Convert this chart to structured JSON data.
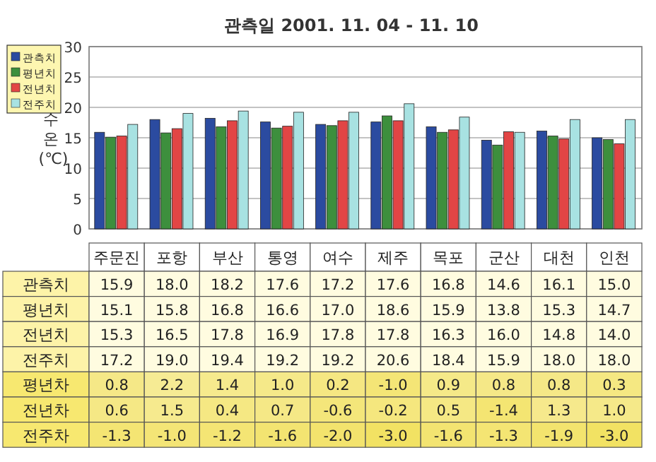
{
  "chart_data": [
    {
      "type": "bar",
      "title": "관측일 2001. 11. 04 - 11. 10",
      "ylabel": "수온 (℃)",
      "categories": [
        "주문진",
        "포항",
        "부산",
        "통영",
        "여수",
        "제주",
        "목포",
        "군산",
        "대천",
        "인천"
      ],
      "series": [
        {
          "name": "관측치",
          "color": "#2b4ba0",
          "values": [
            15.9,
            18.0,
            18.2,
            17.6,
            17.2,
            17.6,
            16.8,
            14.6,
            16.1,
            15.0
          ],
          "value_labels": [
            "15.9",
            "18.0",
            "18.2",
            "17.6",
            "17.2",
            "17.6",
            "16.8",
            "14.6",
            "16.1",
            "15.0"
          ]
        },
        {
          "name": "평년치",
          "color": "#3d8f3d",
          "values": [
            15.1,
            15.8,
            16.8,
            16.6,
            17.0,
            18.6,
            15.9,
            13.8,
            15.3,
            14.7
          ],
          "value_labels": [
            "15.1",
            "15.8",
            "16.8",
            "16.6",
            "17.0",
            "18.6",
            "15.9",
            "13.8",
            "15.3",
            "14.7"
          ]
        },
        {
          "name": "전년치",
          "color": "#e24545",
          "values": [
            15.3,
            16.5,
            17.8,
            16.9,
            17.8,
            17.8,
            16.3,
            16.0,
            14.8,
            14.0
          ],
          "value_labels": [
            "15.3",
            "16.5",
            "17.8",
            "16.9",
            "17.8",
            "17.8",
            "16.3",
            "16.0",
            "14.8",
            "14.0"
          ]
        },
        {
          "name": "전주치",
          "color": "#a8e2e2",
          "values": [
            17.2,
            19.0,
            19.4,
            19.2,
            19.2,
            20.6,
            18.4,
            15.9,
            18.0,
            18.0
          ],
          "value_labels": [
            "17.2",
            "19.0",
            "19.4",
            "19.2",
            "19.2",
            "20.6",
            "18.4",
            "15.9",
            "18.0",
            "18.0"
          ]
        }
      ],
      "ylim": [
        0,
        30
      ],
      "yticks": [
        0,
        5,
        10,
        15,
        20,
        25,
        30
      ],
      "grid": "y",
      "legend": "top left"
    },
    {
      "type": "heatmap",
      "categories": [
        null,
        null,
        null,
        null,
        null,
        null,
        null,
        null,
        null,
        null
      ],
      "y_categories": [
        "평년차",
        "전년차",
        "전주차"
      ],
      "cells": [
        [
          0.8,
          2.2,
          1.4,
          1.0,
          0.2,
          -1.0,
          0.9,
          0.8,
          0.8,
          0.3
        ],
        [
          0.6,
          1.5,
          0.4,
          0.7,
          -0.6,
          -0.2,
          0.5,
          -1.4,
          1.3,
          1.0
        ],
        [
          -1.3,
          -1.0,
          -1.2,
          -1.6,
          -2.0,
          -3.0,
          -1.6,
          -1.3,
          -1.9,
          -3.0
        ]
      ],
      "cell_labels": [
        [
          "0.8",
          "2.2",
          "1.4",
          "1.0",
          "0.2",
          "-1.0",
          "0.9",
          "0.8",
          "0.8",
          "0.3"
        ],
        [
          "0.6",
          "1.5",
          "0.4",
          "0.7",
          "-0.6",
          "-0.2",
          "0.5",
          "-1.4",
          "1.3",
          "1.0"
        ],
        [
          "-1.3",
          "-1.0",
          "-1.2",
          "-1.6",
          "-2.0",
          "-3.0",
          "-1.6",
          "-1.3",
          "-1.9",
          "-3.0"
        ]
      ]
    }
  ]
}
